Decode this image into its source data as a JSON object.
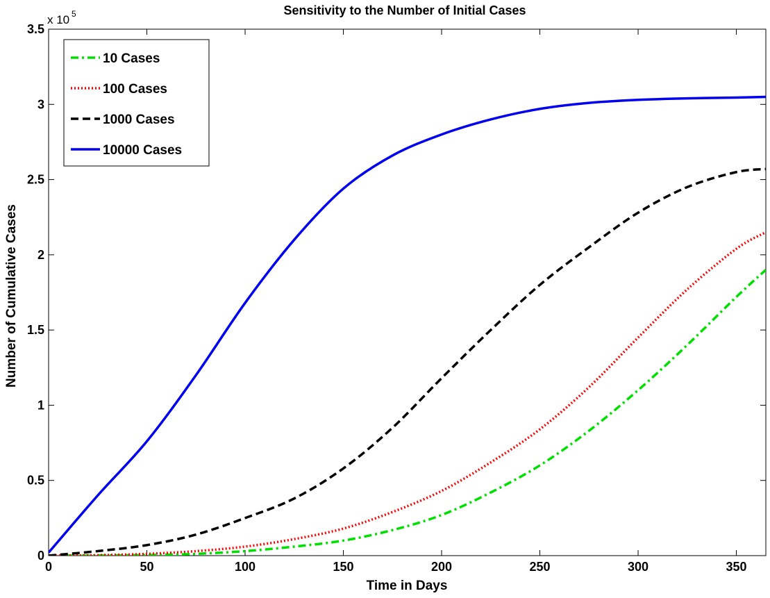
{
  "chart_data": {
    "type": "line",
    "title": "Sensitivity to the Number of Initial Cases",
    "xlabel": "Time in Days",
    "ylabel": "Number of Cumulative Cases",
    "y_multiplier_base": "x 10",
    "y_multiplier_exp": "5",
    "xlim": [
      0,
      365
    ],
    "ylim": [
      0,
      3.5
    ],
    "xticks": [
      0,
      50,
      100,
      150,
      200,
      250,
      300,
      350
    ],
    "xtick_labels": [
      "0",
      "50",
      "100",
      "150",
      "200",
      "250",
      "300",
      "350"
    ],
    "yticks": [
      0,
      0.5,
      1,
      1.5,
      2,
      2.5,
      3,
      3.5
    ],
    "ytick_labels": [
      "0",
      "0.5",
      "1",
      "1.5",
      "2",
      "2.5",
      "3",
      "3.5"
    ],
    "grid": false,
    "legend_position": "top-left",
    "x": [
      0,
      25,
      50,
      75,
      100,
      125,
      150,
      175,
      200,
      225,
      250,
      275,
      300,
      325,
      350,
      365
    ],
    "series": [
      {
        "name": "10 Cases",
        "color": "#00e000",
        "dash": "dash-dot",
        "values": [
          0,
          0.001,
          0.004,
          0.012,
          0.03,
          0.06,
          0.1,
          0.17,
          0.27,
          0.42,
          0.6,
          0.83,
          1.1,
          1.4,
          1.72,
          1.9
        ]
      },
      {
        "name": "100 Cases",
        "color": "#ff0000",
        "dash": "dotted",
        "values": [
          0,
          0.003,
          0.012,
          0.03,
          0.06,
          0.11,
          0.18,
          0.29,
          0.43,
          0.62,
          0.84,
          1.12,
          1.45,
          1.77,
          2.04,
          2.15
        ]
      },
      {
        "name": "1000 Cases",
        "color": "#000000",
        "dash": "dashed",
        "values": [
          0,
          0.03,
          0.07,
          0.14,
          0.25,
          0.38,
          0.58,
          0.85,
          1.18,
          1.5,
          1.8,
          2.05,
          2.28,
          2.45,
          2.55,
          2.57
        ]
      },
      {
        "name": "10000 Cases",
        "color": "#0000ee",
        "dash": "solid",
        "values": [
          0.02,
          0.4,
          0.76,
          1.2,
          1.68,
          2.1,
          2.44,
          2.66,
          2.8,
          2.9,
          2.97,
          3.01,
          3.03,
          3.04,
          3.045,
          3.05
        ]
      }
    ]
  }
}
